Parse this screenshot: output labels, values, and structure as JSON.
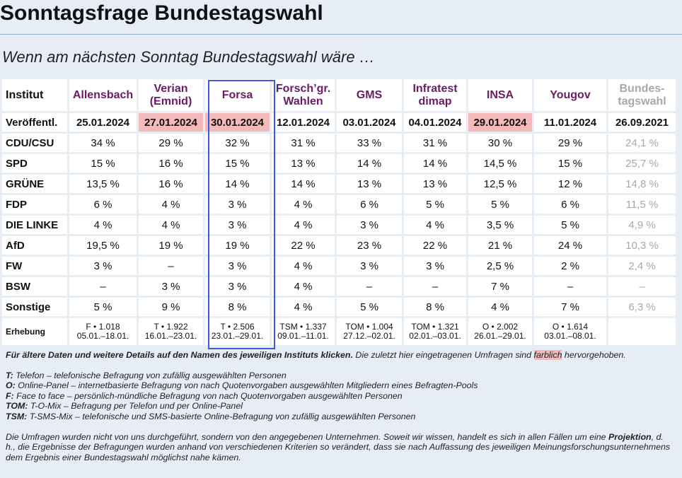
{
  "header": {
    "title": "Sonntagsfrage Bundestagswahl",
    "subtitle": "Wenn am nächsten Sonntag Bundestagswahl wäre …"
  },
  "table": {
    "columns": [
      "Institut",
      "Allensbach",
      "Verian (Emnid)",
      "Forsa",
      "Forsch’gr. Wahlen",
      "GMS",
      "Infratest dimap",
      "INSA",
      "Yougov",
      "Bundes­tagswahl"
    ],
    "rows": [
      {
        "label": "Veröffentl.",
        "cells": [
          "25.01.2024",
          "27.01.2024",
          "30.01.2024",
          "12.01.2024",
          "03.01.2024",
          "04.01.2024",
          "29.01.2024",
          "11.01.2024",
          "26.09.2021"
        ]
      },
      {
        "label": "CDU/CSU",
        "cells": [
          "34 %",
          "29 %",
          "32 %",
          "31 %",
          "33 %",
          "31 %",
          "30 %",
          "29 %",
          "24,1 %"
        ]
      },
      {
        "label": "SPD",
        "cells": [
          "15 %",
          "16 %",
          "15 %",
          "13 %",
          "14 %",
          "14 %",
          "14,5 %",
          "15 %",
          "25,7 %"
        ]
      },
      {
        "label": "GRÜNE",
        "cells": [
          "13,5 %",
          "16 %",
          "14 %",
          "14 %",
          "13 %",
          "13 %",
          "12,5 %",
          "12 %",
          "14,8 %"
        ]
      },
      {
        "label": "FDP",
        "cells": [
          "6 %",
          "4 %",
          "3 %",
          "4 %",
          "6 %",
          "5 %",
          "5 %",
          "6 %",
          "11,5 %"
        ]
      },
      {
        "label": "DIE LINKE",
        "cells": [
          "4 %",
          "4 %",
          "3 %",
          "4 %",
          "3 %",
          "4 %",
          "3,5 %",
          "5 %",
          "4,9 %"
        ]
      },
      {
        "label": "AfD",
        "cells": [
          "19,5 %",
          "19 %",
          "19 %",
          "22 %",
          "23 %",
          "22 %",
          "21 %",
          "24 %",
          "10,3 %"
        ]
      },
      {
        "label": "FW",
        "cells": [
          "3 %",
          "–",
          "3 %",
          "4 %",
          "3 %",
          "3 %",
          "2,5 %",
          "2 %",
          "2,4 %"
        ]
      },
      {
        "label": "BSW",
        "cells": [
          "–",
          "3 %",
          "3 %",
          "4 %",
          "–",
          "–",
          "7 %",
          "–",
          "–"
        ]
      },
      {
        "label": "Sonstige",
        "cells": [
          "5 %",
          "9 %",
          "8 %",
          "4 %",
          "5 %",
          "8 %",
          "4 %",
          "7 %",
          "6,3 %"
        ]
      },
      {
        "label": "Erhebung",
        "cells": [
          {
            "method": "F • 1.018",
            "period": "05.01.–18.01."
          },
          {
            "method": "T • 1.922",
            "period": "16.01.–23.01."
          },
          {
            "method": "T • 2.506",
            "period": "23.01.–29.01."
          },
          {
            "method": "TSM • 1.337",
            "period": "09.01.–11.01."
          },
          {
            "method": "TOM • 1.004",
            "period": "27.12.–02.01."
          },
          {
            "method": "TOM • 1.321",
            "period": "02.01.–03.01."
          },
          {
            "method": "O • 2.002",
            "period": "26.01.–29.01."
          },
          {
            "method": "O • 1.614",
            "period": "03.01.–08.01."
          }
        ]
      }
    ]
  },
  "notes": {
    "intro": {
      "bold": "Für ältere Daten und weitere Details auf den Namen des jeweiligen Instituts klicken.",
      "text": "Die zuletzt hier eingetragenen Umfragen sind",
      "highlight": "farblich",
      "end": "hervorgehoben."
    },
    "legend": [
      {
        "abbr": "T:",
        "text": "Telefon – telefonische Befragung von zufällig ausgewählten Personen"
      },
      {
        "abbr": "O:",
        "text": "Online-Panel – internetbasierte Befragung von nach Quotenvorgaben ausgewählten Mitgliedern eines Befragten-Pools"
      },
      {
        "abbr": "F:",
        "text": "Face to face – persönlich-mündliche Befragung von nach Quotenvorgaben ausgewählten Personen"
      },
      {
        "abbr": "TOM:",
        "text": "T-O-Mix – Befragung per Telefon und per Online-Panel"
      },
      {
        "abbr": "TSM:",
        "text": "T-SMS-Mix – telefonische und SMS-basierte Online-Befragung von zufällig ausgewählten Personen"
      }
    ],
    "disclaimer": {
      "start": "Die Umfragen wurden nicht von uns durchgeführt, sondern von den angegebenen Unternehmen. Soweit wir wissen, handelt es sich in allen Fällen um eine",
      "bold": "Projektion",
      "end": ", d. h., die Ergebnisse der Befragungen wurden anhand von verschiedenen Kriterien so verändert, dass sie nach Auffassung des jeweiligen Meinungsforschungsunternehmens dem Ergebnis einer Bundestagswahl möglichst nahe kämen."
    }
  }
}
